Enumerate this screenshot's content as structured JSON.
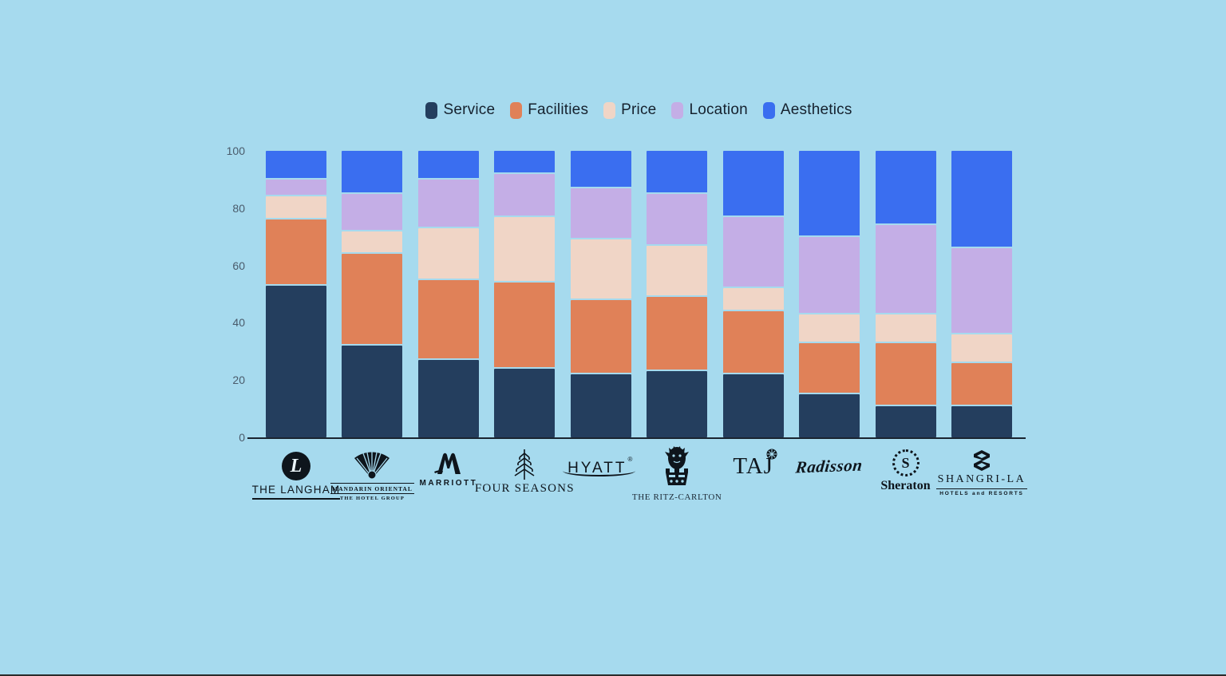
{
  "background_color": "#A6DAEE",
  "chart_data": {
    "type": "bar",
    "stacked": true,
    "title": "",
    "xlabel": "",
    "ylabel": "",
    "ylim": [
      0,
      100
    ],
    "yticks": [
      0,
      20,
      40,
      60,
      80,
      100
    ],
    "grid": false,
    "legend_position": "top",
    "categories": [
      "The Langham",
      "Mandarin Oriental",
      "Marriott",
      "Four Seasons",
      "Hyatt",
      "The Ritz-Carlton",
      "Taj",
      "Radisson",
      "Sheraton",
      "Shangri-La"
    ],
    "series": [
      {
        "name": "Service",
        "color": "#243E5E",
        "values": [
          53,
          32,
          27,
          24,
          22,
          23,
          22,
          15,
          11,
          11
        ]
      },
      {
        "name": "Facilities",
        "color": "#E08158",
        "values": [
          23,
          32,
          28,
          30,
          26,
          26,
          22,
          18,
          22,
          15
        ]
      },
      {
        "name": "Price",
        "color": "#F0D5C6",
        "values": [
          8,
          8,
          18,
          23,
          21,
          18,
          8,
          10,
          10,
          10
        ]
      },
      {
        "name": "Location",
        "color": "#C4AEE6",
        "values": [
          6,
          13,
          17,
          15,
          18,
          18,
          25,
          27,
          31,
          30
        ]
      },
      {
        "name": "Aesthetics",
        "color": "#3A6EF0",
        "values": [
          10,
          15,
          10,
          8,
          13,
          15,
          23,
          30,
          26,
          34
        ]
      }
    ]
  },
  "logos": [
    {
      "id": "langham",
      "name": "THE LANGHAM",
      "monogram": "L"
    },
    {
      "id": "mandarin",
      "name": "MANDARIN ORIENTAL",
      "sub": "THE HOTEL GROUP"
    },
    {
      "id": "marriott",
      "name": "MARRIOTT"
    },
    {
      "id": "fourseasons",
      "name": "FOUR SEASONS"
    },
    {
      "id": "hyatt",
      "name": "HYATT",
      "sup": "®"
    },
    {
      "id": "ritz",
      "name": "THE RITZ-CARLTON"
    },
    {
      "id": "taj",
      "name": "TAJ"
    },
    {
      "id": "radisson",
      "name": "Radisson"
    },
    {
      "id": "sheraton",
      "name": "Sheraton",
      "monogram": "S"
    },
    {
      "id": "shangrila",
      "name": "SHANGRI-LA",
      "sub": "HOTELS and RESORTS"
    }
  ]
}
